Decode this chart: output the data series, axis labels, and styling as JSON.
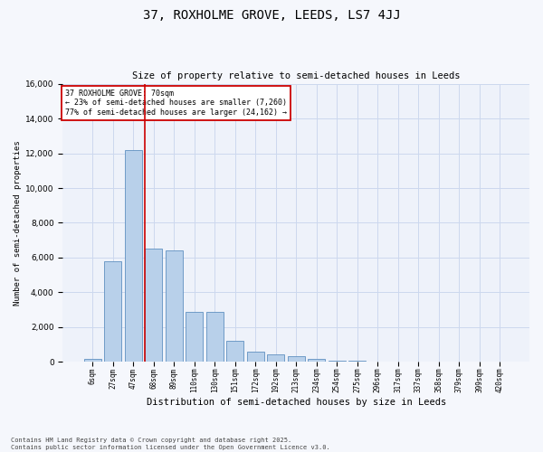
{
  "title1": "37, ROXHOLME GROVE, LEEDS, LS7 4JJ",
  "title2": "Size of property relative to semi-detached houses in Leeds",
  "xlabel": "Distribution of semi-detached houses by size in Leeds",
  "ylabel": "Number of semi-detached properties",
  "categories": [
    "6sqm",
    "27sqm",
    "47sqm",
    "68sqm",
    "89sqm",
    "110sqm",
    "130sqm",
    "151sqm",
    "172sqm",
    "192sqm",
    "213sqm",
    "234sqm",
    "254sqm",
    "275sqm",
    "296sqm",
    "317sqm",
    "337sqm",
    "358sqm",
    "379sqm",
    "399sqm",
    "420sqm"
  ],
  "values": [
    200,
    5800,
    12200,
    6500,
    6400,
    2900,
    2900,
    1200,
    600,
    450,
    350,
    180,
    90,
    50,
    30,
    15,
    10,
    8,
    5,
    3,
    1
  ],
  "bar_color": "#b8d0ea",
  "bar_edge_color": "#6090c0",
  "vline_color": "#cc0000",
  "vline_x": 2.57,
  "annotation_title": "37 ROXHOLME GROVE: 70sqm",
  "annotation_smaller": "← 23% of semi-detached houses are smaller (7,260)",
  "annotation_larger": "77% of semi-detached houses are larger (24,162) →",
  "annotation_box_color": "#ffffff",
  "annotation_box_edge": "#cc0000",
  "ylim": [
    0,
    16000
  ],
  "yticks": [
    0,
    2000,
    4000,
    6000,
    8000,
    10000,
    12000,
    14000,
    16000
  ],
  "grid_color": "#ccd8ee",
  "background_color": "#eef2fa",
  "fig_background": "#f5f7fc",
  "footnote1": "Contains HM Land Registry data © Crown copyright and database right 2025.",
  "footnote2": "Contains public sector information licensed under the Open Government Licence v3.0."
}
